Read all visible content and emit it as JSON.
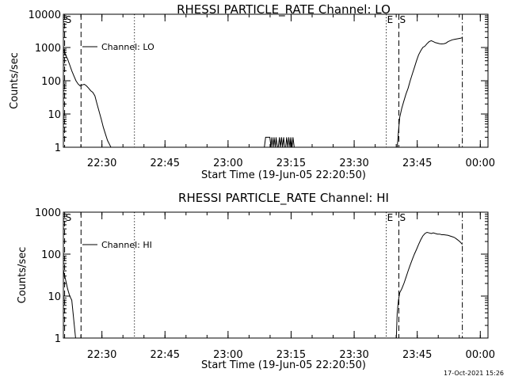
{
  "stamp": "17-Oct-2021 15:26",
  "chart_data": [
    {
      "type": "line",
      "title": "RHESSI PARTICLE_RATE Channel: LO",
      "xlabel": "Start Time (19-Jun-05 22:20:50)",
      "ylabel": "Counts/sec",
      "y_scale": "log",
      "ylim": [
        1,
        10000
      ],
      "xlim_minutes_from_start": [
        0,
        101
      ],
      "x_ticks": [
        {
          "label": "22:30",
          "minute": 9.17
        },
        {
          "label": "22:45",
          "minute": 24.17
        },
        {
          "label": "23:00",
          "minute": 39.17
        },
        {
          "label": "23:15",
          "minute": 54.17
        },
        {
          "label": "23:30",
          "minute": 69.17
        },
        {
          "label": "23:45",
          "minute": 84.17
        },
        {
          "label": "00:00",
          "minute": 99.17
        }
      ],
      "y_ticks": [
        {
          "label": "1",
          "value": 1
        },
        {
          "label": "10",
          "value": 10
        },
        {
          "label": "100",
          "value": 100
        },
        {
          "label": "1000",
          "value": 1000
        },
        {
          "label": "10000",
          "value": 10000
        }
      ],
      "legend": {
        "label": "Channel: LO",
        "position": "top-left"
      },
      "markers": [
        {
          "label": "S",
          "minute": 0.3,
          "style": "dash"
        },
        {
          "label": "",
          "minute": 4.2,
          "style": "dash"
        },
        {
          "label": "",
          "minute": 16.9,
          "style": "dot"
        },
        {
          "label": "E",
          "minute": 76.8,
          "style": "dot"
        },
        {
          "label": "S",
          "minute": 79.8,
          "style": "dash"
        },
        {
          "label": "",
          "minute": 94.9,
          "style": "dashdot"
        }
      ],
      "series": [
        {
          "x": [
            0,
            0.5,
            1.0,
            1.5,
            2.0,
            2.5,
            3.0,
            3.5,
            4.0,
            4.5,
            5.0,
            5.5,
            6.0,
            6.5,
            7.0,
            7.5,
            8.0,
            8.5,
            9.0,
            9.5,
            10.0,
            10.5,
            11.0,
            11.3
          ],
          "y": [
            900,
            600,
            450,
            300,
            200,
            140,
            100,
            80,
            70,
            75,
            78,
            70,
            60,
            50,
            45,
            35,
            20,
            12,
            7,
            4,
            2.5,
            1.6,
            1.2,
            1
          ],
          "stroke": "#000000"
        },
        {
          "x": [
            47.8,
            48.1,
            48.3,
            48.6,
            48.9,
            49.1,
            49.4,
            49.6,
            49.9,
            50.1,
            50.4,
            50.6,
            50.9,
            51.1,
            51.4,
            51.6,
            51.9,
            52.1,
            52.4,
            52.6,
            52.9,
            53.1,
            53.4,
            53.6,
            53.9,
            54.1,
            54.4,
            54.6,
            54.9,
            55.1
          ],
          "y": [
            1,
            2,
            2,
            2,
            2,
            2,
            1,
            2,
            1,
            2,
            1,
            2,
            1,
            1,
            2,
            1,
            2,
            1,
            2,
            1,
            1,
            2,
            1,
            2,
            1,
            2,
            1,
            2,
            1,
            1
          ],
          "stroke": "#000000"
        },
        {
          "x": [
            79.4,
            79.7,
            80.0,
            80.5,
            81.0,
            81.5,
            82.0,
            82.5,
            83.0,
            83.5,
            84.0,
            84.5,
            85.0,
            85.5,
            86.0,
            86.5,
            87.0,
            87.5,
            88.0,
            88.5,
            89.0,
            89.5,
            90.0,
            90.5,
            91.0,
            91.5,
            92.0,
            92.5,
            93.0,
            93.5,
            94.0,
            94.5,
            94.9
          ],
          "y": [
            1,
            3,
            8,
            15,
            25,
            40,
            60,
            100,
            160,
            250,
            400,
            600,
            800,
            1000,
            1100,
            1300,
            1500,
            1600,
            1500,
            1400,
            1350,
            1300,
            1280,
            1300,
            1350,
            1500,
            1600,
            1700,
            1750,
            1800,
            1850,
            1900,
            2000
          ],
          "stroke": "#000000"
        }
      ]
    },
    {
      "type": "line",
      "title": "RHESSI PARTICLE_RATE Channel: HI",
      "xlabel": "Start Time (19-Jun-05 22:20:50)",
      "ylabel": "Counts/sec",
      "y_scale": "log",
      "ylim": [
        1,
        1000
      ],
      "xlim_minutes_from_start": [
        0,
        101
      ],
      "x_ticks": [
        {
          "label": "22:30",
          "minute": 9.17
        },
        {
          "label": "22:45",
          "minute": 24.17
        },
        {
          "label": "23:00",
          "minute": 39.17
        },
        {
          "label": "23:15",
          "minute": 54.17
        },
        {
          "label": "23:30",
          "minute": 69.17
        },
        {
          "label": "23:45",
          "minute": 84.17
        },
        {
          "label": "00:00",
          "minute": 99.17
        }
      ],
      "y_ticks": [
        {
          "label": "1",
          "value": 1
        },
        {
          "label": "10",
          "value": 10
        },
        {
          "label": "100",
          "value": 100
        },
        {
          "label": "1000",
          "value": 1000
        }
      ],
      "legend": {
        "label": "Channel: HI",
        "position": "top-left"
      },
      "markers": [
        {
          "label": "S",
          "minute": 0.3,
          "style": "dash"
        },
        {
          "label": "",
          "minute": 4.2,
          "style": "dash"
        },
        {
          "label": "",
          "minute": 16.9,
          "style": "dot"
        },
        {
          "label": "E",
          "minute": 76.8,
          "style": "dot"
        },
        {
          "label": "S",
          "minute": 79.8,
          "style": "dash"
        },
        {
          "label": "",
          "minute": 94.9,
          "style": "dashdot"
        }
      ],
      "series": [
        {
          "x": [
            0,
            0.5,
            1.0,
            1.5,
            2.0,
            2.3,
            2.6,
            2.9
          ],
          "y": [
            40,
            25,
            15,
            10,
            8,
            4,
            2,
            1
          ],
          "stroke": "#000000"
        },
        {
          "x": [
            79.2,
            79.4,
            79.7,
            80.0,
            80.5,
            81.0,
            81.5,
            82.0,
            82.5,
            83.0,
            83.5,
            84.0,
            84.5,
            85.0,
            85.5,
            86.0,
            86.5,
            87.0,
            87.5,
            88.0,
            88.5,
            89.0,
            89.5,
            90.0,
            90.5,
            91.0,
            91.5,
            92.0,
            92.5,
            93.0,
            93.5,
            94.0,
            94.5,
            94.9
          ],
          "y": [
            1,
            4,
            8,
            12,
            15,
            20,
            28,
            40,
            55,
            75,
            100,
            130,
            170,
            220,
            270,
            310,
            330,
            320,
            310,
            320,
            310,
            300,
            300,
            290,
            290,
            285,
            280,
            270,
            260,
            250,
            230,
            210,
            190,
            170
          ],
          "stroke": "#000000"
        }
      ]
    }
  ]
}
